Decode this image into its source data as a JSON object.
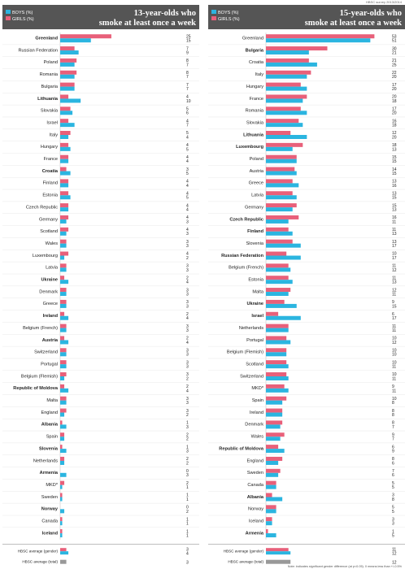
{
  "source": "HBSC survey 2013/2014",
  "note": "Note: indicates significant gender difference (at p<0.05). 0 means less than +/-0.5%",
  "colors": {
    "boys": "#2bb5e0",
    "girls": "#e8607a",
    "header_bg": "#555555",
    "average": "#999999"
  },
  "chart_data": [
    {
      "type": "bar",
      "orientation": "horizontal",
      "title": "13-year-olds who smoke at least once a week",
      "legend": [
        "BOYS (%)",
        "GIRLS (%)"
      ],
      "legend_position": "top-left",
      "categories": [
        "Greenland",
        "Russian Federation",
        "Poland",
        "Romania",
        "Bulgaria",
        "Lithuania",
        "Slovakia",
        "Israel",
        "Italy",
        "Hungary",
        "France",
        "Croatia",
        "Finland",
        "Estonia",
        "Czech Republic",
        "Germany",
        "Scotland",
        "Wales",
        "Luxembourg",
        "Latvia",
        "Ukraine",
        "Denmark",
        "Greece",
        "Ireland",
        "Belgium (French)",
        "Austria",
        "Switzerland",
        "Portugal",
        "Belgium (Flemish)",
        "Republic of Moldova",
        "Malta",
        "England",
        "Albania",
        "Spain",
        "Slovenia",
        "Netherlands",
        "Armenia",
        "MKD*",
        "Sweden",
        "Norway",
        "Canada",
        "Iceland"
      ],
      "significant": [
        "Greenland",
        "Lithuania",
        "Croatia",
        "Ukraine",
        "Ireland",
        "Austria",
        "Republic of Moldova",
        "Albania",
        "Slovenia",
        "Armenia",
        "Norway",
        "Iceland"
      ],
      "series": [
        {
          "name": "GIRLS (%)",
          "values": [
            25,
            7,
            8,
            8,
            7,
            4,
            5,
            4,
            5,
            4,
            4,
            3,
            4,
            4,
            4,
            4,
            4,
            3,
            4,
            3,
            2,
            3,
            3,
            2,
            3,
            2,
            3,
            3,
            3,
            2,
            3,
            3,
            1,
            2,
            1,
            2,
            0,
            2,
            1,
            0,
            1,
            1
          ]
        },
        {
          "name": "BOYS (%)",
          "values": [
            15,
            9,
            7,
            7,
            7,
            10,
            6,
            7,
            4,
            5,
            4,
            5,
            4,
            5,
            4,
            3,
            3,
            3,
            2,
            3,
            4,
            3,
            3,
            4,
            3,
            4,
            3,
            3,
            2,
            4,
            3,
            2,
            3,
            2,
            3,
            2,
            3,
            1,
            1,
            2,
            1,
            1
          ]
        }
      ],
      "averages": {
        "categories": [
          "HBSC average (gender)",
          "HBSC average (total)"
        ],
        "girls": [
          3,
          null
        ],
        "boys": [
          4,
          null
        ],
        "total": [
          null,
          3
        ]
      },
      "xlim": [
        0,
        60
      ]
    },
    {
      "type": "bar",
      "orientation": "horizontal",
      "title": "15-year-olds who smoke at least once a week",
      "legend": [
        "BOYS (%)",
        "GIRLS (%)"
      ],
      "legend_position": "top-left",
      "categories": [
        "Greenland",
        "Bulgaria",
        "Croatia",
        "Italy",
        "Hungary",
        "France",
        "Romania",
        "Slovakia",
        "Lithuania",
        "Luxembourg",
        "Poland",
        "Austria",
        "Greece",
        "Latvia",
        "Germany",
        "Czech Republic",
        "Finland",
        "Slovenia",
        "Russian Federation",
        "Belgium (French)",
        "Estonia",
        "Malta",
        "Ukraine",
        "Israel",
        "Netherlands",
        "Portugal",
        "Belgium (Flemish)",
        "Scotland",
        "Switzerland",
        "MKD*",
        "Spain",
        "Ireland",
        "Denmark",
        "Wales",
        "Republic of Moldova",
        "England",
        "Sweden",
        "Canada",
        "Albania",
        "Norway",
        "Iceland",
        "Armenia"
      ],
      "significant": [
        "Bulgaria",
        "Lithuania",
        "Luxembourg",
        "Czech Republic",
        "Finland",
        "Russian Federation",
        "Ukraine",
        "Israel",
        "Republic of Moldova",
        "Albania",
        "Armenia"
      ],
      "series": [
        {
          "name": "GIRLS (%)",
          "values": [
            53,
            30,
            21,
            22,
            17,
            20,
            17,
            16,
            12,
            18,
            15,
            14,
            13,
            13,
            15,
            16,
            11,
            13,
            10,
            11,
            11,
            12,
            9,
            6,
            11,
            10,
            10,
            10,
            10,
            9,
            10,
            8,
            8,
            9,
            6,
            8,
            7,
            5,
            3,
            5,
            3,
            1
          ]
        },
        {
          "name": "BOYS (%)",
          "values": [
            51,
            21,
            25,
            20,
            20,
            18,
            20,
            18,
            20,
            13,
            15,
            15,
            16,
            15,
            13,
            11,
            13,
            17,
            17,
            12,
            13,
            11,
            15,
            17,
            11,
            12,
            10,
            11,
            11,
            11,
            8,
            8,
            7,
            7,
            9,
            6,
            6,
            5,
            8,
            5,
            3,
            5
          ]
        }
      ],
      "averages": {
        "categories": [
          "HBSC average (gender)",
          "HBSC average (total)"
        ],
        "girls": [
          11,
          null
        ],
        "boys": [
          12,
          null
        ],
        "total": [
          null,
          12
        ]
      },
      "xlim": [
        0,
        60
      ]
    }
  ]
}
